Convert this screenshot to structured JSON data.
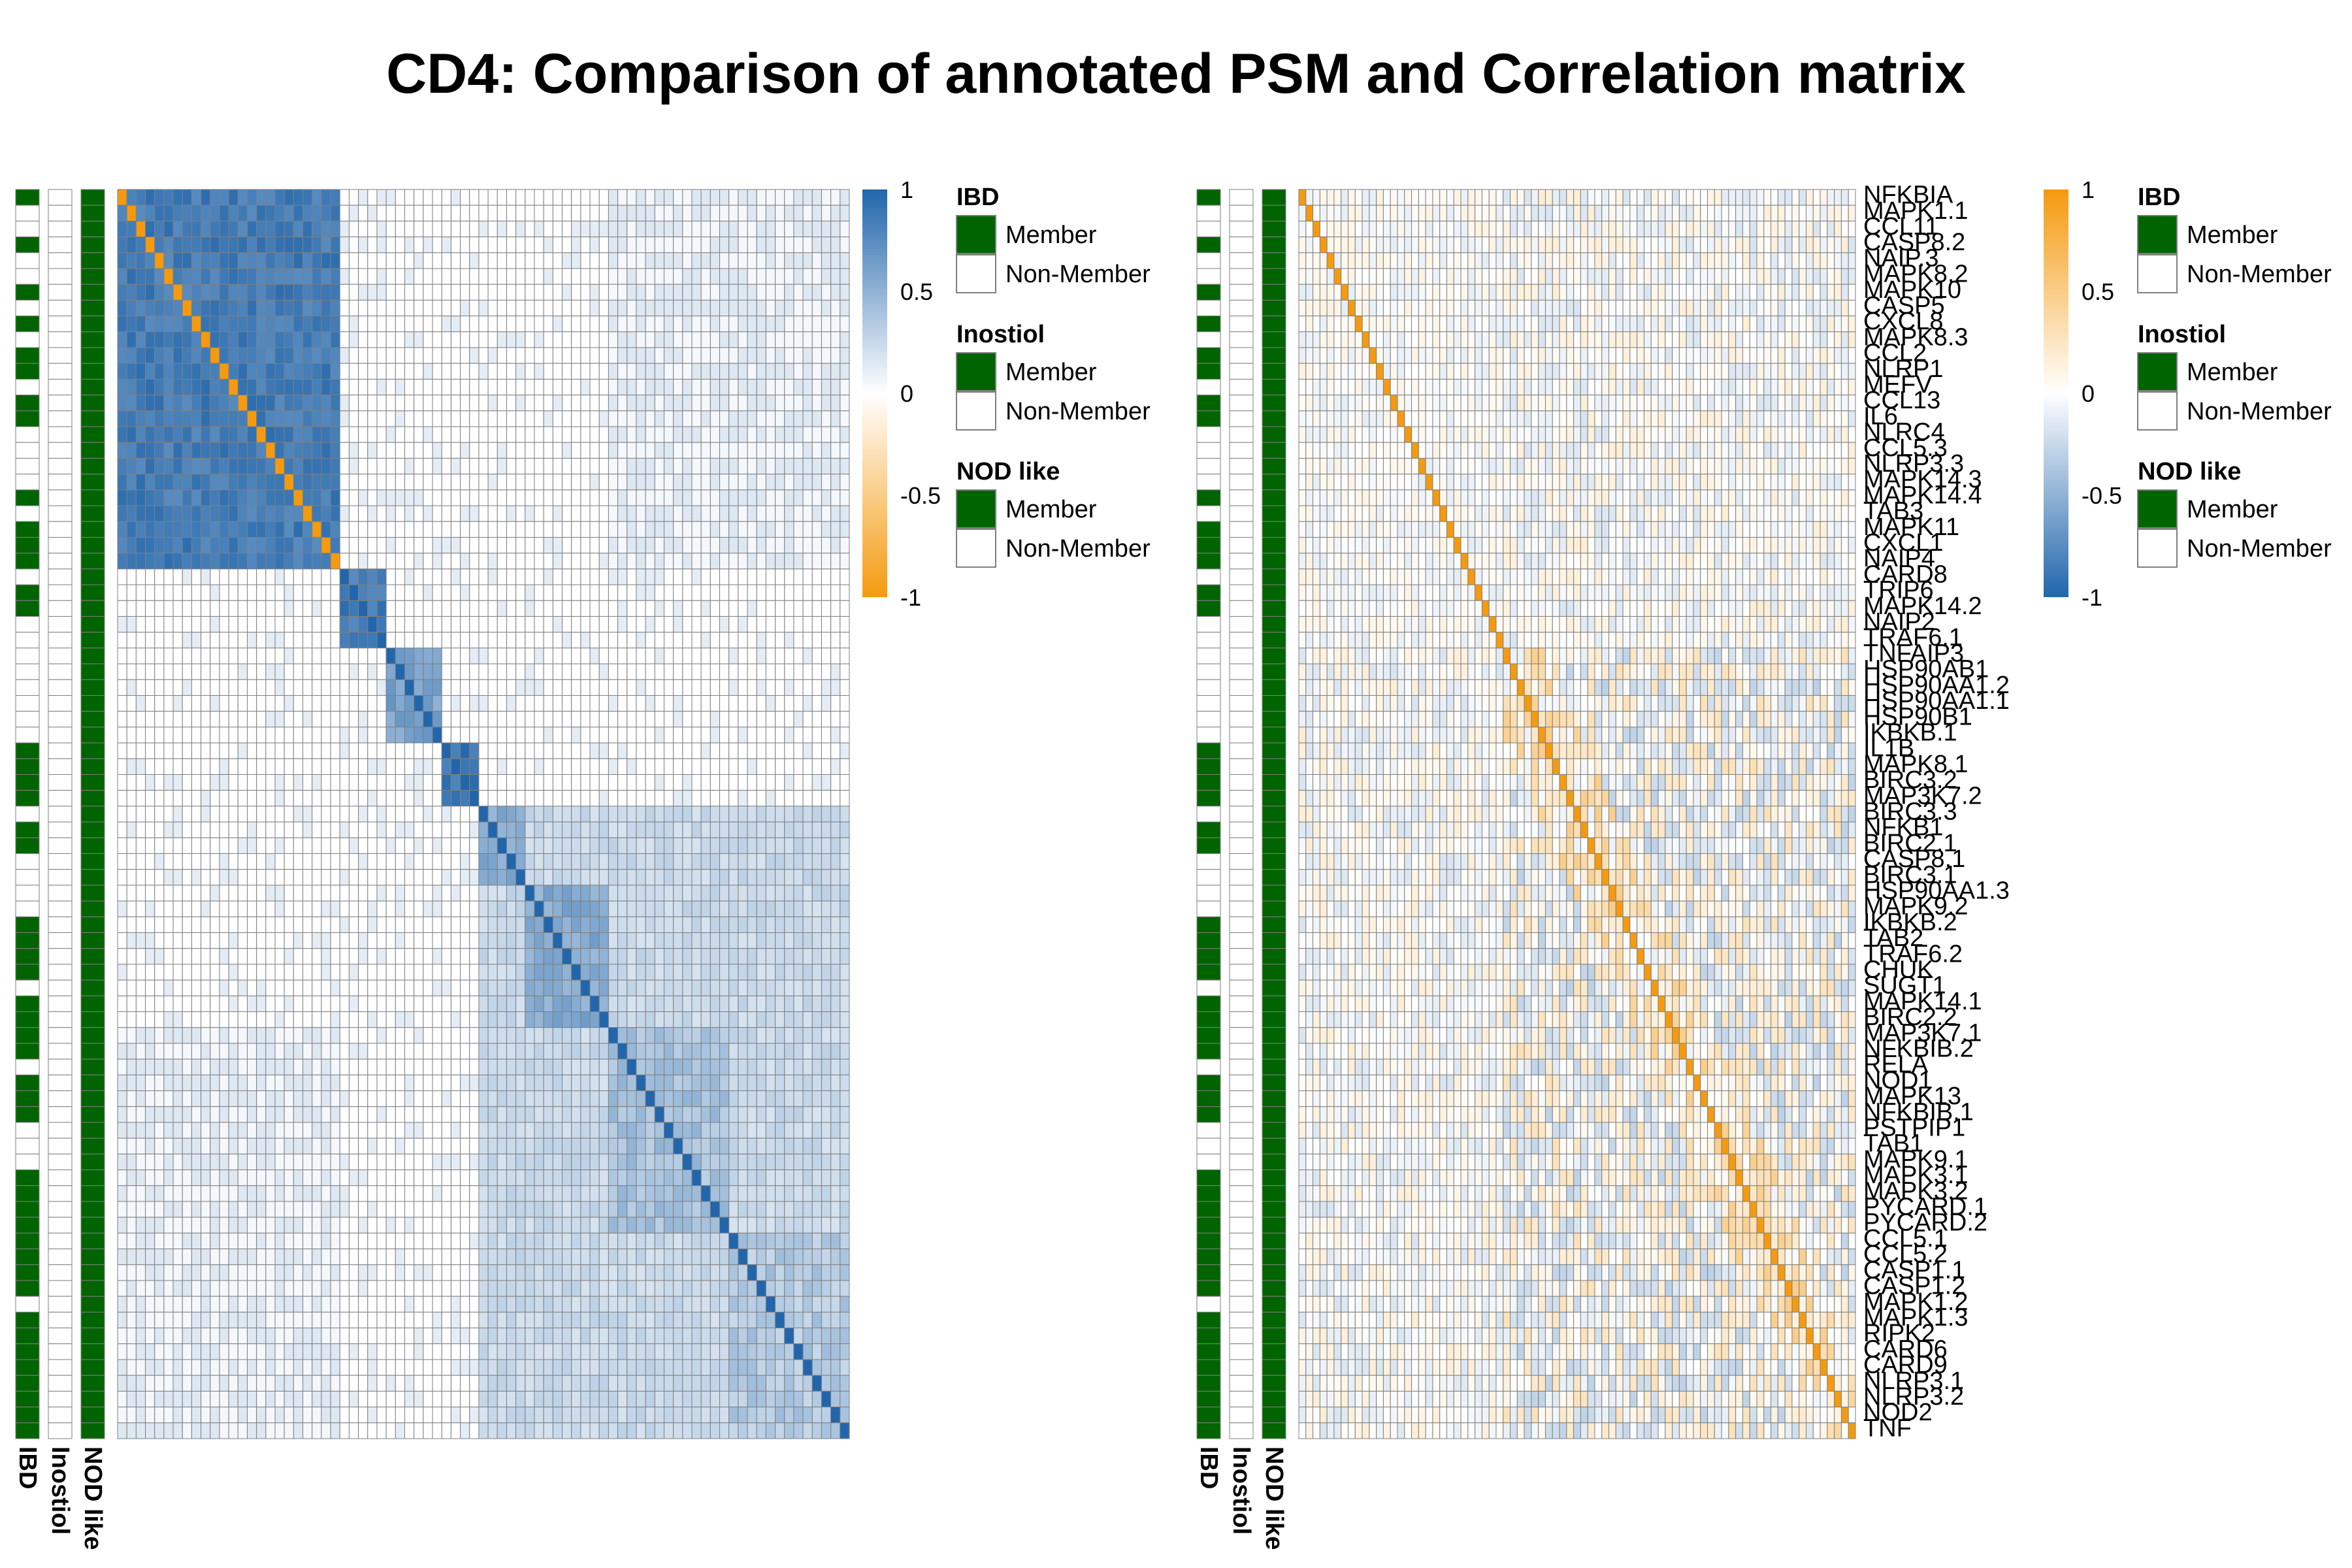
{
  "title": "CD4: Comparison of annotated PSM and Correlation matrix",
  "colors": {
    "member": "#006400",
    "non_member": "#ffffff",
    "positive_blue": "#2166ac",
    "orange": "#f59a0f",
    "neutral": "#ffffff",
    "cell_border": "#7f7f7f"
  },
  "chart_data": [
    {
      "type": "heatmap",
      "name": "PSM",
      "title": "",
      "annotation_tracks": [
        "IBD",
        "Inostiol",
        "NOD like"
      ],
      "color_scale": {
        "ticks": [
          "1",
          "0.5",
          "0",
          "-0.5",
          "-1"
        ],
        "range": [
          -1,
          1
        ],
        "high_color": "blue",
        "low_color": "orange"
      },
      "row_labels_shown": false,
      "blocks": [
        {
          "rows": "1-24",
          "within_value": 0.85,
          "diagonal": "orange"
        },
        {
          "rows": "25-29",
          "within_value": 0.85
        },
        {
          "rows": "30-35",
          "within_value": 0.6
        },
        {
          "rows": "36-39",
          "within_value": 0.9
        },
        {
          "rows": "40-44",
          "within_value": 0.55
        },
        {
          "rows": "45-53",
          "within_value": 0.55
        },
        {
          "rows": "54-66",
          "within_value": 0.4
        }
      ]
    },
    {
      "type": "heatmap",
      "name": "Correlation",
      "title": "",
      "annotation_tracks": [
        "IBD",
        "Inostiol",
        "NOD like"
      ],
      "color_scale": {
        "ticks": [
          "1",
          "0.5",
          "0",
          "-0.5",
          "-1"
        ],
        "range": [
          -1,
          1
        ],
        "high_color": "orange",
        "low_color": "blue"
      },
      "row_labels": [
        "NFKBIA",
        "MAPK1.1",
        "CCL11",
        "CASP8.2",
        "NAIP.3",
        "MAPK8.2",
        "MAPK10",
        "CASP5",
        "CXCL8",
        "MAPK8.3",
        "CCL2",
        "NLRP1",
        "MEFV",
        "CCL13",
        "IL6",
        "NLRC4",
        "CCL5.3",
        "NLRP3.3",
        "MAPK14.3",
        "MAPK14.4",
        "TAB3",
        "MAPK11",
        "CXCL1",
        "NAIP4",
        "CARD8",
        "TRIP6",
        "MAPK14.2",
        "NAIP2",
        "TRAF6.1",
        "TNFAIP3",
        "HSP90AB1",
        "HSP90AA1.2",
        "HSP90AA1.1",
        "HSP90B1",
        "IKBKB.1",
        "IL1B",
        "MAPK8.1",
        "BIRC3.2",
        "MAP3K7.2",
        "BIRC3.3",
        "NFKB1",
        "BIRC2.1",
        "CASP8.1",
        "BIRC3.1",
        "HSP90AA1.3",
        "MAPK9.2",
        "IKBKB.2",
        "TAB2",
        "TRAF6.2",
        "CHUK",
        "SUGT1",
        "MAPK14.1",
        "BIRC2.2",
        "MAP3K7.1",
        "NFKBIB.2",
        "RELA",
        "NOD1",
        "MAPK13",
        "NFKBIB.1",
        "PSTPIP1",
        "TAB1",
        "MAPK9.1",
        "MAPK3.1",
        "MAPK3.2",
        "PYCARD.1",
        "PYCARD.2",
        "CCL5.1",
        "CCL5.2",
        "CASP1.1",
        "CASP1.2",
        "MAPK1.2",
        "MAPK1.3",
        "RIPK2",
        "CARD6",
        "CARD9",
        "NLRP3.1",
        "NLRP3.2",
        "NOD2",
        "TNF"
      ]
    }
  ],
  "legends": [
    {
      "title": "IBD",
      "items": [
        "Member",
        "Non-Member"
      ]
    },
    {
      "title": "Inostiol",
      "items": [
        "Member",
        "Non-Member"
      ]
    },
    {
      "title": "NOD like",
      "items": [
        "Member",
        "Non-Member"
      ]
    }
  ],
  "annotation_axis_labels": [
    "IBD",
    "Inostiol",
    "NOD like"
  ],
  "ibd_membership": [
    1,
    0,
    0,
    1,
    0,
    0,
    1,
    0,
    1,
    0,
    1,
    1,
    0,
    1,
    1,
    0,
    0,
    0,
    0,
    1,
    0,
    1,
    1,
    1,
    0,
    1,
    1,
    0,
    0,
    0,
    0,
    0,
    0,
    0,
    0,
    1,
    1,
    1,
    1,
    0,
    1,
    1,
    0,
    0,
    0,
    0,
    1,
    1,
    1,
    1,
    0,
    1,
    1,
    1,
    1,
    0,
    1,
    1,
    1,
    0,
    0,
    0,
    1,
    1,
    1,
    1,
    1,
    1,
    1,
    1,
    0,
    1,
    1,
    1,
    1,
    1,
    1,
    1,
    1
  ],
  "inostiol_membership": 0,
  "nod_like_membership": 1
}
